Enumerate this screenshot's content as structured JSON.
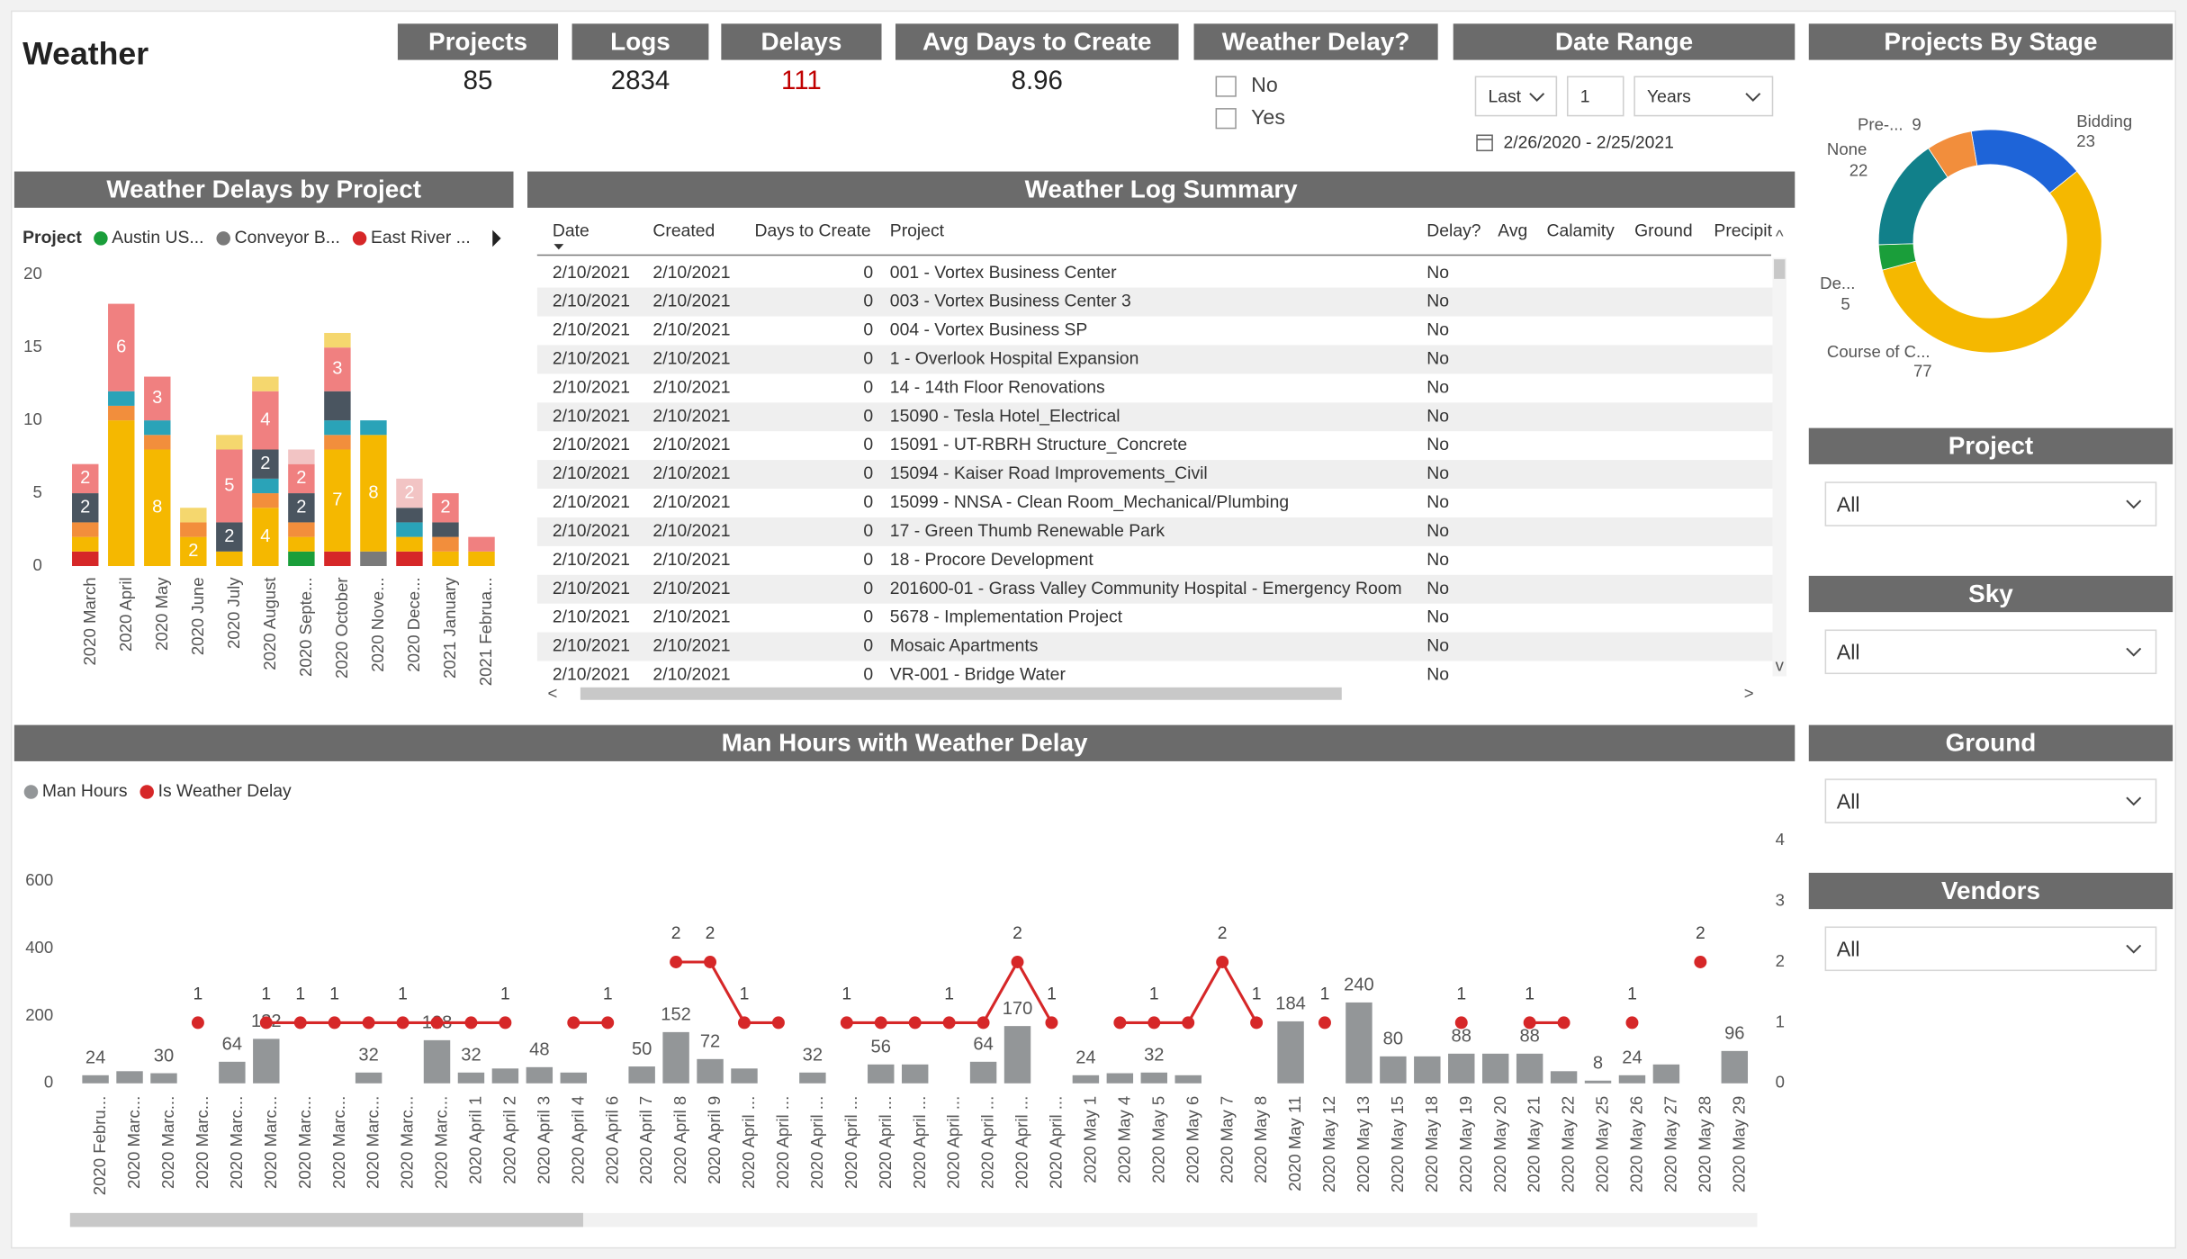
{
  "title": "Weather",
  "kpis": [
    {
      "label": "Projects",
      "value": 85
    },
    {
      "label": "Logs",
      "value": 2834
    },
    {
      "label": "Delays",
      "value": 111,
      "color": "#c00000"
    },
    {
      "label": "Avg Days to Create",
      "value": 8.96
    }
  ],
  "weather_delay_filter": {
    "title": "Weather Delay?",
    "options": [
      "No",
      "Yes"
    ]
  },
  "date_range": {
    "title": "Date Range",
    "mode": "Last",
    "count": 1,
    "unit": "Years",
    "range": "2/26/2020 - 2/25/2021"
  },
  "table": {
    "title": "Weather Log Summary",
    "columns": [
      "Date",
      "Created",
      "Days to Create",
      "Project",
      "Delay?",
      "Avg",
      "Calamity",
      "Ground",
      "Precipit"
    ],
    "rows": [
      [
        "2/10/2021",
        "2/10/2021",
        0,
        "001 - Vortex Business Center",
        "No"
      ],
      [
        "2/10/2021",
        "2/10/2021",
        0,
        "003 - Vortex Business Center 3",
        "No"
      ],
      [
        "2/10/2021",
        "2/10/2021",
        0,
        "004 - Vortex Business SP",
        "No"
      ],
      [
        "2/10/2021",
        "2/10/2021",
        0,
        "1 - Overlook Hospital Expansion",
        "No"
      ],
      [
        "2/10/2021",
        "2/10/2021",
        0,
        "14 - 14th Floor Renovations",
        "No"
      ],
      [
        "2/10/2021",
        "2/10/2021",
        0,
        "15090 - Tesla Hotel_Electrical",
        "No"
      ],
      [
        "2/10/2021",
        "2/10/2021",
        0,
        "15091 - UT-RBRH Structure_Concrete",
        "No"
      ],
      [
        "2/10/2021",
        "2/10/2021",
        0,
        "15094 - Kaiser Road Improvements_Civil",
        "No"
      ],
      [
        "2/10/2021",
        "2/10/2021",
        0,
        "15099 - NNSA - Clean Room_Mechanical/Plumbing",
        "No"
      ],
      [
        "2/10/2021",
        "2/10/2021",
        0,
        "17 - Green Thumb Renewable Park",
        "No"
      ],
      [
        "2/10/2021",
        "2/10/2021",
        0,
        "18 - Procore Development",
        "No"
      ],
      [
        "2/10/2021",
        "2/10/2021",
        0,
        "201600-01 - Grass Valley Community Hospital - Emergency Room",
        "No"
      ],
      [
        "2/10/2021",
        "2/10/2021",
        0,
        "5678 - Implementation Project",
        "No"
      ],
      [
        "2/10/2021",
        "2/10/2021",
        0,
        "Mosaic Apartments",
        "No"
      ],
      [
        "2/10/2021",
        "2/10/2021",
        0,
        "VR-001 - Bridge Water",
        "No"
      ]
    ]
  },
  "slicers": [
    {
      "title": "Project",
      "value": "All"
    },
    {
      "title": "Sky",
      "value": "All"
    },
    {
      "title": "Ground",
      "value": "All"
    },
    {
      "title": "Vendors",
      "value": "All"
    }
  ],
  "chart_data": [
    {
      "type": "bar",
      "stacked": true,
      "title": "Weather Delays by Project",
      "legend_title": "Project",
      "categories": [
        "2020 March",
        "2020 April",
        "2020 May",
        "2020 June",
        "2020 July",
        "2020 August",
        "2020 Septe...",
        "2020 October",
        "2020 Nove...",
        "2020 Dece...",
        "2021 January",
        "2021 Februa..."
      ],
      "series": [
        {
          "name": "Austin US...",
          "color": "#1a9e3a",
          "values": [
            0,
            0,
            0,
            0,
            0,
            0,
            1,
            0,
            0,
            0,
            0,
            0
          ]
        },
        {
          "name": "Conveyor B...",
          "color": "#7a7a7a",
          "values": [
            0,
            0,
            0,
            0,
            0,
            0,
            0,
            0,
            1,
            0,
            0,
            0
          ]
        },
        {
          "name": "East River ...",
          "color": "#d62728",
          "values": [
            1,
            0,
            0,
            0,
            0,
            0,
            0,
            1,
            0,
            1,
            0,
            0
          ]
        },
        {
          "color": "#f5b800",
          "values": [
            1,
            10,
            8,
            2,
            1,
            4,
            1,
            7,
            8,
            1,
            1,
            1
          ],
          "value_labels": [
            null,
            null,
            8,
            2,
            null,
            4,
            null,
            7,
            8,
            null,
            null,
            null
          ]
        },
        {
          "color": "#f28e3c",
          "values": [
            1,
            1,
            1,
            1,
            0,
            1,
            1,
            1,
            0,
            0,
            1,
            0
          ]
        },
        {
          "color": "#2aa3b8",
          "values": [
            0,
            1,
            1,
            0,
            0,
            1,
            0,
            1,
            1,
            1,
            0,
            0
          ]
        },
        {
          "color": "#4a5560",
          "values": [
            2,
            0,
            0,
            0,
            2,
            2,
            2,
            2,
            0,
            1,
            1,
            0
          ],
          "value_labels": [
            2,
            null,
            null,
            null,
            2,
            2,
            2,
            null,
            null,
            null,
            null,
            null
          ]
        },
        {
          "color": "#f08080",
          "values": [
            2,
            6,
            3,
            0,
            5,
            4,
            2,
            3,
            0,
            0,
            2,
            1
          ],
          "value_labels": [
            2,
            6,
            3,
            null,
            5,
            4,
            2,
            3,
            null,
            null,
            2,
            null
          ]
        },
        {
          "color": "#f5d76e",
          "values": [
            0,
            0,
            0,
            1,
            1,
            1,
            0,
            1,
            0,
            0,
            0,
            0
          ]
        },
        {
          "color": "#f2c4c4",
          "values": [
            0,
            0,
            0,
            0,
            0,
            0,
            1,
            0,
            0,
            2,
            0,
            0
          ],
          "value_labels": [
            null,
            null,
            null,
            null,
            null,
            null,
            null,
            null,
            null,
            2,
            null,
            null
          ]
        }
      ],
      "ylim": [
        0,
        20
      ],
      "yticks": [
        0,
        5,
        10,
        15,
        20
      ]
    },
    {
      "type": "combo",
      "title": "Man Hours with Weather Delay",
      "categories": [
        "2020 Febru...",
        "2020 Marc...",
        "2020 Marc...",
        "2020 Marc...",
        "2020 Marc...",
        "2020 Marc...",
        "2020 Marc...",
        "2020 Marc...",
        "2020 Marc...",
        "2020 Marc...",
        "2020 Marc...",
        "2020 April 1",
        "2020 April 2",
        "2020 April 3",
        "2020 April 4",
        "2020 April 6",
        "2020 April 7",
        "2020 April 8",
        "2020 April 9",
        "2020 April ...",
        "2020 April ...",
        "2020 April ...",
        "2020 April ...",
        "2020 April ...",
        "2020 April ...",
        "2020 April ...",
        "2020 April ...",
        "2020 April ...",
        "2020 April ...",
        "2020 May 1",
        "2020 May 4",
        "2020 May 5",
        "2020 May 6",
        "2020 May 7",
        "2020 May 8",
        "2020 May 11",
        "2020 May 12",
        "2020 May 13",
        "2020 May 15",
        "2020 May 18",
        "2020 May 19",
        "2020 May 20",
        "2020 May 21",
        "2020 May 22",
        "2020 May 25",
        "2020 May 26",
        "2020 May 27",
        "2020 May 28",
        "2020 May 29"
      ],
      "series": [
        {
          "name": "Man Hours",
          "type": "bar",
          "color": "#939698",
          "values": [
            24,
            36,
            30,
            null,
            64,
            132,
            null,
            null,
            32,
            null,
            128,
            32,
            44,
            48,
            32,
            null,
            50,
            152,
            72,
            44,
            null,
            32,
            null,
            56,
            56,
            null,
            64,
            170,
            null,
            24,
            30,
            32,
            24,
            null,
            null,
            184,
            null,
            240,
            80,
            80,
            88,
            88,
            88,
            36,
            8,
            24,
            56,
            null,
            96
          ],
          "value_labels": [
            24,
            null,
            30,
            null,
            64,
            132,
            null,
            null,
            32,
            null,
            128,
            32,
            null,
            48,
            null,
            null,
            50,
            152,
            72,
            null,
            null,
            32,
            null,
            56,
            null,
            null,
            64,
            170,
            null,
            24,
            null,
            32,
            null,
            null,
            null,
            184,
            null,
            240,
            80,
            null,
            88,
            null,
            88,
            null,
            8,
            24,
            null,
            null,
            96
          ]
        },
        {
          "name": "Is Weather Delay",
          "type": "line",
          "axis": "y2",
          "color": "#d62728",
          "values": [
            null,
            null,
            null,
            1,
            null,
            1,
            1,
            1,
            1,
            1,
            1,
            1,
            1,
            null,
            1,
            1,
            null,
            2,
            2,
            1,
            1,
            null,
            1,
            1,
            1,
            1,
            1,
            2,
            1,
            null,
            1,
            1,
            1,
            2,
            1,
            null,
            1,
            null,
            null,
            null,
            1,
            null,
            1,
            1,
            null,
            1,
            null,
            2,
            null
          ],
          "value_labels": [
            null,
            null,
            null,
            1,
            null,
            1,
            1,
            1,
            null,
            1,
            null,
            null,
            1,
            null,
            null,
            1,
            null,
            2,
            2,
            1,
            null,
            null,
            1,
            null,
            null,
            1,
            null,
            2,
            1,
            null,
            null,
            1,
            null,
            2,
            1,
            null,
            1,
            null,
            null,
            null,
            1,
            null,
            1,
            null,
            null,
            1,
            null,
            2,
            null
          ]
        }
      ],
      "ylim": [
        0,
        720
      ],
      "yticks": [
        0,
        200,
        400,
        600
      ],
      "y2lim": [
        0,
        4
      ],
      "y2ticks": [
        0,
        1,
        2,
        3,
        4
      ]
    },
    {
      "type": "pie",
      "donut": true,
      "title": "Projects By Stage",
      "categories": [
        "Bidding",
        "Course of C...",
        "De...",
        "None",
        "Pre-..."
      ],
      "values": [
        23,
        77,
        5,
        22,
        9
      ],
      "colors": [
        "#1e64d8",
        "#f5b800",
        "#1a9e3a",
        "#11808a",
        "#f28e3c"
      ]
    }
  ]
}
